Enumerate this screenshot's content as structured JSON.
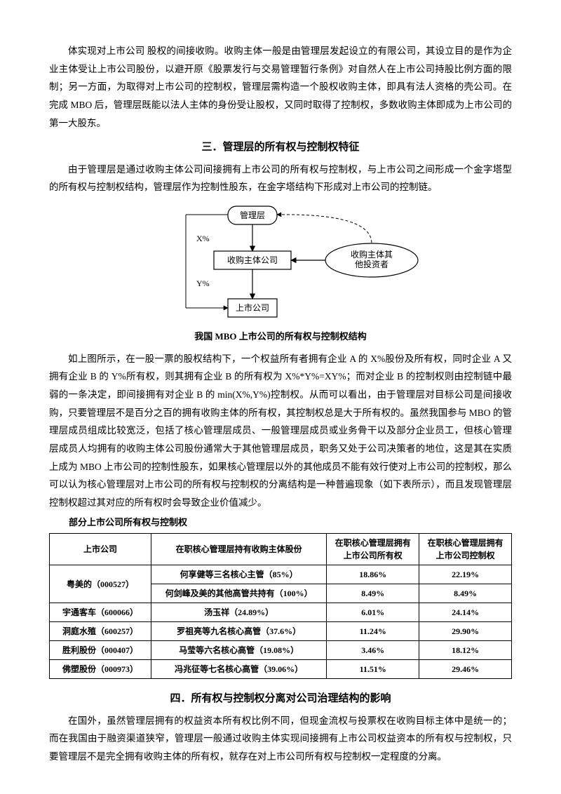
{
  "para1": "体实现对上市公司 股权的间接收购。收购主体一般是由管理层发起设立的有限公司，其设立目的是作为企业主体受让上市公司股份，以避开原《股票发行与交易管理暂行条例》对自然人在上市公司持股比例方面的限制；另一方面，为取得对上市公司的控制权，管理层需构造一个股权收购主体，即具有法人资格的壳公司。在完成 MBO 后，管理层既能以法人主体的身份受让股权，又同时取得了控制权，多数收购主体即成为上市公司的第一大股东。",
  "heading3": "三．管理层的所有权与控制权特征",
  "para2": "由于管理层是通过收购主体公司间接拥有上市公司的所有权与控制权，与上市公司之间形成一个金字塔型的所有权与控制权结构，管理层作为控制性股东，在金字塔结构下形成对上市公司的控制链。",
  "diagram": {
    "node1": "管理层",
    "node2": "收购主体公司",
    "node3": "上市公司",
    "node4": "收购主体其他投资者",
    "label_x": "X%",
    "label_y": "Y%",
    "caption": "我国 MBO 上市公司的所有权与控制权结构",
    "stroke": "#000000",
    "fill": "#ffffff"
  },
  "para3": "如上图所示，在一股一票的股权结构下，一个权益所有者拥有企业 A 的 X%股份及所有权，同时企业 A 又拥有企业 B 的 Y%所有权，则其拥有企业 B 的所有权为 X%*Y%=XY%；而对企业 B 的控制权则由控制链中最弱的一条决定，即间接拥有对企业 B 的 min(X%,Y%)控制权。从而可以看出，由于管理层对目标公司是间接收购，只要管理层不是百分之百的拥有收购主体的所有权，其控制权总是大于所有权的。虽然我国参与 MBO 的管理层成员组成比较宽泛，包括了核心管理层成员、一般管理层成员或业务骨干以及部分企业员工，但核心管理层成员人均拥有的收购主体公司股份通常大于其他管理层成员，职务又处于公司决策者的地位，这是其在实质上成为 MBO 上市公司的控制性股东，如果核心管理层以外的其他成员不能有效行使对上市公司的控制权，那么可以认为核心管理层对上市公司的所有权与控制权的分离结构是一种普遍现象（如下表所示），而且发现管理层控制权超过其对应的所有权时会导致企业价值减少。",
  "table": {
    "caption": "部分上市公司所有权与控制权",
    "headers": [
      "上市公司",
      "在职核心管理层持有收购主体股份",
      "在职核心管理层拥有上市公司所有权",
      "在职核心管理层拥有上市公司控制权"
    ],
    "rows": [
      {
        "c0": "粤美的（000527）",
        "rowspan0": 2,
        "c1": "何享健等三名核心主管（85%）",
        "c2": "18.86%",
        "c3": "22.19%"
      },
      {
        "c1": "何剑峰及美的其他高管共持有（100%）",
        "c2": "8.49%",
        "c3": "8.49%"
      },
      {
        "c0": "宇通客车（600066）",
        "c1": "汤玉祥（24.89%）",
        "c2": "6.01%",
        "c3": "24.14%"
      },
      {
        "c0": "洞庭水殖（600257）",
        "c1": "罗祖亮等九名核心高管（37.6%）",
        "c2": "11.24%",
        "c3": "29.90%"
      },
      {
        "c0": "胜利股份（000407）",
        "c1": "马莹等六名核心高管（19.08%）",
        "c2": "3.46%",
        "c3": "18.12%"
      },
      {
        "c0": "佛塑股份（000973）",
        "c1": "冯兆征等七名核心高管（39.06%）",
        "c2": "11.51%",
        "c3": "29.46%"
      }
    ],
    "col_widths": [
      "22%",
      "38%",
      "20%",
      "20%"
    ]
  },
  "heading4": "四．所有权与控制权分离对公司治理结构的影响",
  "para4": "在国外，虽然管理层拥有的权益资本所有权比例不同，但现金流权与投票权在收购目标主体中是统一的；而在我国由于融资渠道狭窄，管理层一般通过收购主体实现间接拥有上市公司权益资本的所有权与控制权，只要管理层不是完全拥有收购主体的所有权，就存在对上市公司所有权与控制权一定程度的分离。"
}
